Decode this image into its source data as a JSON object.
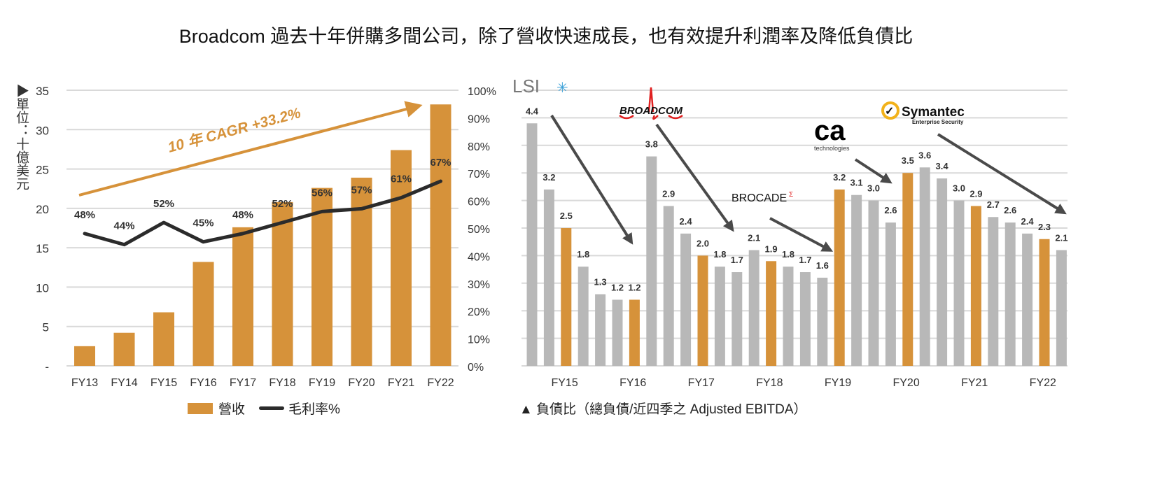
{
  "title": "Broadcom 過去十年併購多間公司，除了營收快速成長，也有效提升利潤率及降低負債比",
  "colors": {
    "orange": "#D6923A",
    "gray": "#B8B8B8",
    "line": "#2b2b2b",
    "grid": "#D9D9D9"
  },
  "chart_data": [
    {
      "type": "bar",
      "title": "",
      "unit_label": "▶單位：十億美元",
      "categories": [
        "FY13",
        "FY14",
        "FY15",
        "FY16",
        "FY17",
        "FY18",
        "FY19",
        "FY20",
        "FY21",
        "FY22"
      ],
      "series": [
        {
          "name": "營收",
          "type": "bar",
          "axis": "left",
          "values": [
            2.5,
            4.2,
            6.8,
            13.2,
            17.6,
            20.8,
            22.6,
            23.9,
            27.4,
            33.2
          ]
        },
        {
          "name": "毛利率%",
          "type": "line",
          "axis": "right",
          "values": [
            48,
            44,
            52,
            45,
            48,
            52,
            56,
            57,
            61,
            67
          ],
          "labels": [
            "48%",
            "44%",
            "52%",
            "45%",
            "48%",
            "52%",
            "56%",
            "57%",
            "61%",
            "67%"
          ]
        }
      ],
      "ylim": [
        0,
        35
      ],
      "yticks": [
        "-",
        "5",
        "10",
        "15",
        "20",
        "25",
        "30",
        "35"
      ],
      "y2lim": [
        0,
        100
      ],
      "y2ticks": [
        "0%",
        "10%",
        "20%",
        "30%",
        "40%",
        "50%",
        "60%",
        "70%",
        "80%",
        "90%",
        "100%"
      ],
      "annotation": "10 年 CAGR +33.2%",
      "legend": [
        "營收",
        "毛利率%"
      ],
      "grid": true
    },
    {
      "type": "bar",
      "title": "▲ 負債比（總負債/近四季之 Adjusted EBITDA）",
      "ylim": [
        0,
        5
      ],
      "categories": [
        "FY15",
        "FY16",
        "FY17",
        "FY18",
        "FY19",
        "FY20",
        "FY21",
        "FY22"
      ],
      "values": [
        4.4,
        3.2,
        2.5,
        1.8,
        1.3,
        1.2,
        1.2,
        3.8,
        2.9,
        2.4,
        2.0,
        1.8,
        1.7,
        2.1,
        1.9,
        1.8,
        1.7,
        1.6,
        3.2,
        3.1,
        3.0,
        2.6,
        3.5,
        3.6,
        3.4,
        3.0,
        2.9,
        2.7,
        2.6,
        2.4,
        2.3,
        2.1
      ],
      "labels": [
        "4.4",
        "3.2",
        "2.5",
        "1.8",
        "1.3",
        "1.2",
        "1.2",
        "3.8",
        "2.9",
        "2.4",
        "2.0",
        "1.8",
        "1.7",
        "2.1",
        "1.9",
        "1.8",
        "1.7",
        "1.6",
        "3.2",
        "3.1",
        "3.0",
        "2.6",
        "3.5",
        "3.6",
        "3.4",
        "3.0",
        "2.9",
        "2.7",
        "2.6",
        "2.4",
        "2.3",
        "2.1"
      ],
      "highlight": [
        2,
        6,
        10,
        14,
        18,
        22,
        26,
        30
      ],
      "acquisitions": [
        "LSI",
        "BROADCOM",
        "BROCADE",
        "ca",
        "technologies",
        "Symantec",
        "Enterprise Security"
      ],
      "grid": true
    }
  ]
}
